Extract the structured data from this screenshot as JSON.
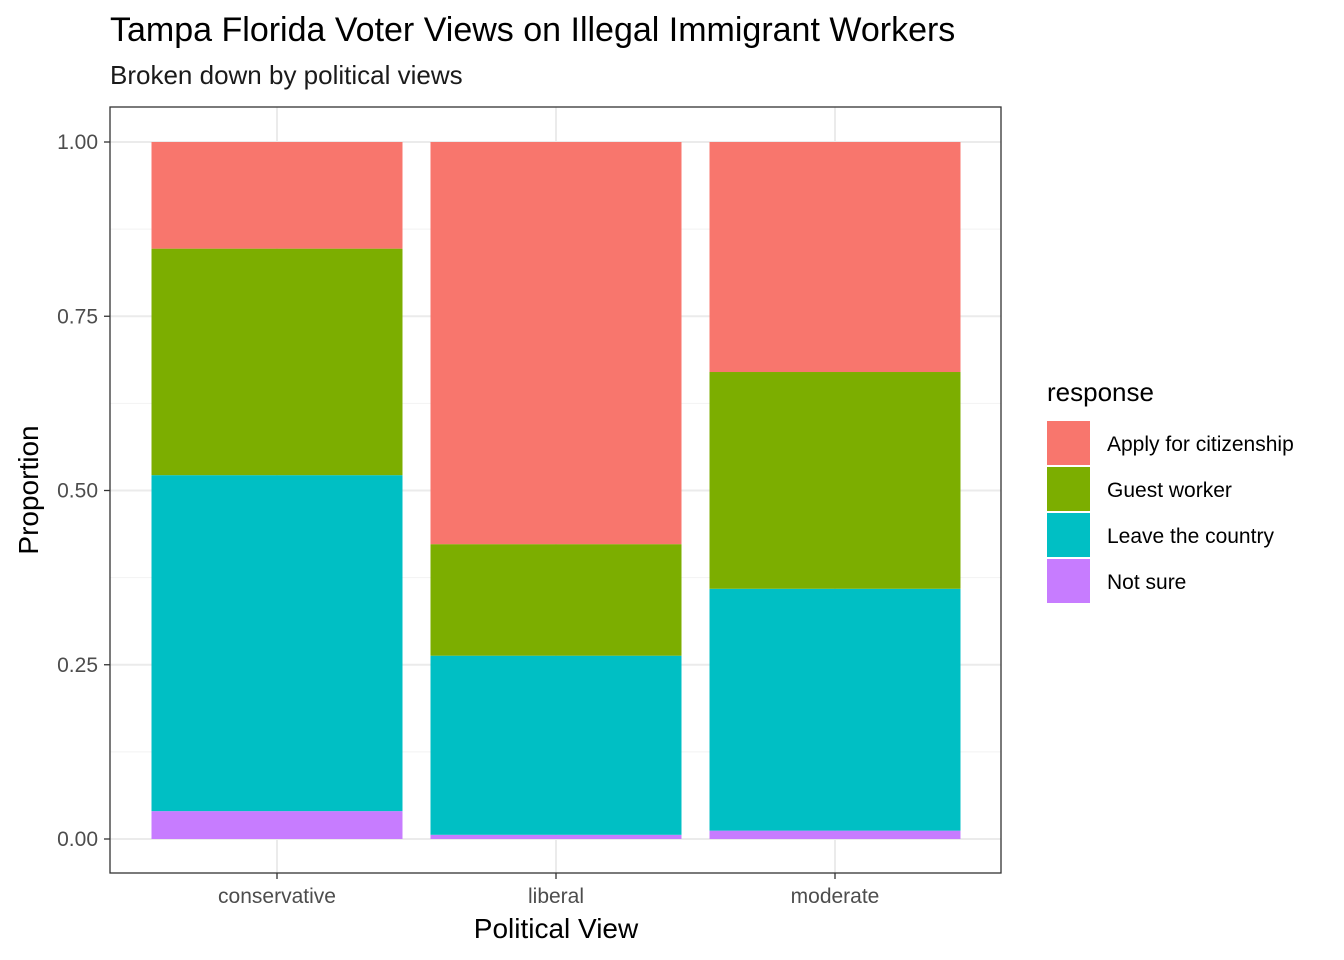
{
  "chart_data": {
    "type": "bar",
    "stacked": true,
    "title": "Tampa Florida Voter Views on Illegal Immigrant Workers",
    "subtitle": "Broken down by political views",
    "xlabel": "Political View",
    "ylabel": "Proportion",
    "categories": [
      "conservative",
      "liberal",
      "moderate"
    ],
    "ylim": [
      0,
      1
    ],
    "y_ticks": [
      "0.00",
      "0.25",
      "0.50",
      "0.75",
      "1.00"
    ],
    "grid": true,
    "legend": {
      "title": "response",
      "position": "right"
    },
    "series": [
      {
        "name": "Not sure",
        "color": "#C77CFF",
        "values": [
          0.04,
          0.006,
          0.012
        ]
      },
      {
        "name": "Leave the country",
        "color": "#00BFC4",
        "values": [
          0.482,
          0.257,
          0.347
        ]
      },
      {
        "name": "Guest worker",
        "color": "#7CAE00",
        "values": [
          0.325,
          0.16,
          0.311
        ]
      },
      {
        "name": "Apply for citizenship",
        "color": "#F8766D",
        "values": [
          0.153,
          0.577,
          0.33
        ]
      }
    ],
    "legend_order": [
      "Apply for citizenship",
      "Guest worker",
      "Leave the country",
      "Not sure"
    ]
  }
}
